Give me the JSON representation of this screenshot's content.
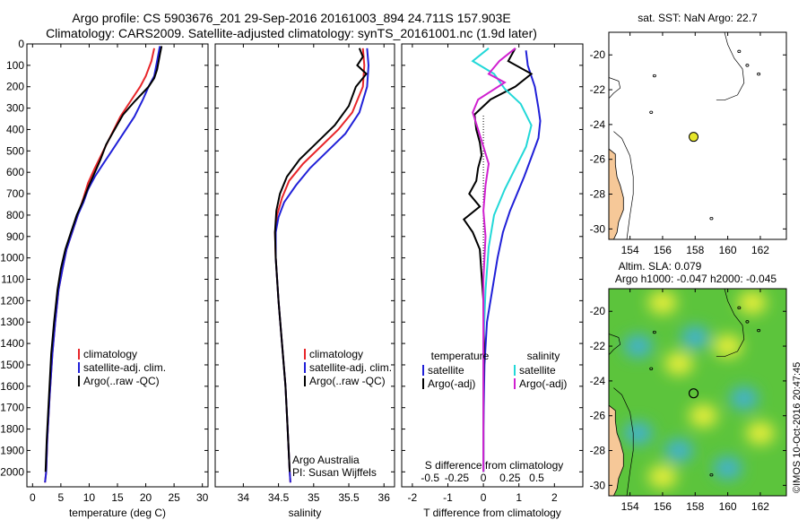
{
  "header": {
    "line1": "Argo profile: CS 5903676_201 29-Sep-2016 20161003_894 24.711S 157.903E",
    "line2": "Climatology: CARS2009. Satellite-adjusted climatology: synTS_20161001.nc (1.9d later)"
  },
  "side_label": "©IMOS 10-Oct-2016 20:47:45",
  "colors": {
    "clim": "#e8262a",
    "sat": "#2020d8",
    "argo": "#000000",
    "sat_s": "#22d8d8",
    "argo_s": "#d020d0",
    "land": "#f6c898"
  },
  "chart_data": [
    {
      "type": "line",
      "xlabel": "temperature (deg C)",
      "xlim": [
        -1,
        31
      ],
      "xticks": [
        0,
        5,
        10,
        15,
        20,
        25,
        30
      ],
      "ylim": [
        2070,
        0
      ],
      "yticks": [
        0,
        100,
        200,
        300,
        400,
        500,
        600,
        700,
        800,
        900,
        1000,
        1100,
        1200,
        1300,
        1400,
        1500,
        1600,
        1700,
        1800,
        1900,
        2000
      ],
      "legend": [
        "climatology",
        "satellite-adj. clim.",
        "Argo(..raw -QC)"
      ],
      "series": [
        {
          "name": "climatology",
          "color": "clim",
          "points": [
            [
              21.5,
              20
            ],
            [
              21,
              80
            ],
            [
              20,
              150
            ],
            [
              19,
              200
            ],
            [
              17.5,
              260
            ],
            [
              15.5,
              340
            ],
            [
              14,
              420
            ],
            [
              12.5,
              500
            ],
            [
              11,
              580
            ],
            [
              9.8,
              650
            ],
            [
              9,
              720
            ],
            [
              8,
              800
            ],
            [
              7,
              880
            ],
            [
              6,
              960
            ],
            [
              5.3,
              1050
            ],
            [
              4.6,
              1150
            ],
            [
              4,
              1300
            ],
            [
              3.5,
              1450
            ],
            [
              3,
              1650
            ],
            [
              2.6,
              1850
            ],
            [
              2.4,
              2000
            ],
            [
              2.2,
              2050
            ]
          ]
        },
        {
          "name": "satellite-adj. clim.",
          "color": "sat",
          "points": [
            [
              22.5,
              10
            ],
            [
              22,
              80
            ],
            [
              21.5,
              150
            ],
            [
              20.5,
              200
            ],
            [
              19.5,
              260
            ],
            [
              18,
              340
            ],
            [
              16,
              420
            ],
            [
              14,
              500
            ],
            [
              12.5,
              560
            ],
            [
              11,
              620
            ],
            [
              9.8,
              680
            ],
            [
              9,
              740
            ],
            [
              8,
              800
            ],
            [
              7,
              880
            ],
            [
              6,
              960
            ],
            [
              5.3,
              1050
            ],
            [
              4.6,
              1150
            ],
            [
              4,
              1300
            ],
            [
              3.5,
              1450
            ],
            [
              3,
              1650
            ],
            [
              2.6,
              1850
            ],
            [
              2.4,
              2000
            ],
            [
              2.2,
              2050
            ]
          ]
        },
        {
          "name": "Argo(..raw -QC)",
          "color": "argo",
          "points": [
            [
              22.8,
              10
            ],
            [
              22.5,
              50
            ],
            [
              22,
              120
            ],
            [
              21.5,
              160
            ],
            [
              20.5,
              200
            ],
            [
              18,
              270
            ],
            [
              16,
              330
            ],
            [
              14.5,
              400
            ],
            [
              13,
              470
            ],
            [
              12,
              540
            ],
            [
              11,
              600
            ],
            [
              10,
              660
            ],
            [
              8.8,
              740
            ],
            [
              7.8,
              800
            ],
            [
              6.8,
              880
            ],
            [
              5.8,
              960
            ],
            [
              5,
              1050
            ],
            [
              4.4,
              1150
            ],
            [
              3.8,
              1300
            ],
            [
              3.3,
              1450
            ],
            [
              2.9,
              1650
            ],
            [
              2.5,
              1850
            ],
            [
              2.3,
              2000
            ]
          ]
        }
      ]
    },
    {
      "type": "line",
      "xlabel": "salinity",
      "xlim": [
        33.6,
        36.15
      ],
      "xticks": [
        34,
        34.5,
        35,
        35.5,
        36
      ],
      "ylim": [
        2070,
        0
      ],
      "legend": [
        "climatology",
        "satellite-adj. clim.",
        "Argo(..raw -QC)"
      ],
      "annotation": [
        "Argo Australia",
        "PI: Susan Wijffels"
      ],
      "series": [
        {
          "name": "climatology",
          "color": "clim",
          "points": [
            [
              35.7,
              20
            ],
            [
              35.72,
              100
            ],
            [
              35.7,
              200
            ],
            [
              35.55,
              320
            ],
            [
              35.35,
              400
            ],
            [
              35.1,
              480
            ],
            [
              34.85,
              560
            ],
            [
              34.65,
              640
            ],
            [
              34.55,
              720
            ],
            [
              34.48,
              800
            ],
            [
              34.45,
              880
            ],
            [
              34.46,
              1000
            ],
            [
              34.5,
              1200
            ],
            [
              34.55,
              1400
            ],
            [
              34.6,
              1600
            ],
            [
              34.63,
              1800
            ],
            [
              34.66,
              2000
            ],
            [
              34.67,
              2050
            ]
          ]
        },
        {
          "name": "satellite-adj. clim.",
          "color": "sat",
          "points": [
            [
              35.76,
              20
            ],
            [
              35.78,
              100
            ],
            [
              35.76,
              200
            ],
            [
              35.65,
              320
            ],
            [
              35.45,
              420
            ],
            [
              35.2,
              500
            ],
            [
              34.95,
              580
            ],
            [
              34.75,
              660
            ],
            [
              34.58,
              740
            ],
            [
              34.5,
              810
            ],
            [
              34.46,
              880
            ],
            [
              34.46,
              1000
            ],
            [
              34.5,
              1200
            ],
            [
              34.55,
              1400
            ],
            [
              34.6,
              1600
            ],
            [
              34.63,
              1800
            ],
            [
              34.66,
              2000
            ],
            [
              34.67,
              2050
            ]
          ]
        },
        {
          "name": "Argo(..raw -QC)",
          "color": "argo",
          "points": [
            [
              35.65,
              20
            ],
            [
              35.7,
              60
            ],
            [
              35.62,
              100
            ],
            [
              35.75,
              140
            ],
            [
              35.6,
              200
            ],
            [
              35.5,
              290
            ],
            [
              35.3,
              380
            ],
            [
              35.05,
              460
            ],
            [
              34.8,
              540
            ],
            [
              34.62,
              620
            ],
            [
              34.52,
              700
            ],
            [
              34.47,
              780
            ],
            [
              34.45,
              880
            ],
            [
              34.46,
              1000
            ],
            [
              34.5,
              1200
            ],
            [
              34.55,
              1400
            ],
            [
              34.6,
              1600
            ],
            [
              34.63,
              1800
            ],
            [
              34.66,
              2000
            ]
          ]
        }
      ]
    },
    {
      "type": "line",
      "xlabel": "T difference from climatology",
      "xlabel2": "S difference from climatology",
      "xlim": [
        -2.3,
        2.8
      ],
      "xticks": [
        -2,
        -1,
        0,
        1,
        2
      ],
      "xticks2": [
        -0.5,
        -0.25,
        0,
        0.25,
        0.5
      ],
      "ylim": [
        2070,
        0
      ],
      "legend_headers": [
        "temperature",
        "salinity"
      ],
      "legend": [
        "satellite",
        "Argo(-adj)",
        "satellite",
        "Argo(-adj)"
      ],
      "series": [
        {
          "name": "satellite",
          "group": "temperature",
          "color": "sat",
          "points": [
            [
              1.2,
              30
            ],
            [
              1.25,
              100
            ],
            [
              1.45,
              200
            ],
            [
              1.55,
              300
            ],
            [
              1.6,
              360
            ],
            [
              1.55,
              440
            ],
            [
              1.35,
              530
            ],
            [
              1.15,
              620
            ],
            [
              0.95,
              700
            ],
            [
              0.75,
              780
            ],
            [
              0.55,
              880
            ],
            [
              0.4,
              1000
            ],
            [
              0.25,
              1150
            ],
            [
              0.1,
              1300
            ],
            [
              0.03,
              1500
            ],
            [
              0,
              1800
            ],
            [
              0,
              2000
            ]
          ]
        },
        {
          "name": "Argo(-adj)",
          "group": "temperature",
          "color": "argo",
          "points": [
            [
              0.9,
              20
            ],
            [
              0.7,
              80
            ],
            [
              1.35,
              140
            ],
            [
              0.9,
              200
            ],
            [
              0.2,
              260
            ],
            [
              -0.25,
              330
            ],
            [
              -0.2,
              400
            ],
            [
              -0.1,
              460
            ],
            [
              -0.05,
              520
            ],
            [
              -0.15,
              580
            ],
            [
              -0.2,
              640
            ],
            [
              -0.4,
              700
            ],
            [
              -0.1,
              760
            ],
            [
              -0.55,
              820
            ],
            [
              -0.3,
              880
            ],
            [
              -0.1,
              960
            ],
            [
              -0.05,
              1080
            ],
            [
              0,
              1200
            ],
            [
              0.02,
              1400
            ],
            [
              0,
              1600
            ],
            [
              0,
              1800
            ],
            [
              0,
              2000
            ]
          ]
        },
        {
          "name": "satellite",
          "group": "salinity",
          "color": "sat_s",
          "points": [
            [
              0.05,
              20
            ],
            [
              -0.1,
              80
            ],
            [
              0.1,
              140
            ],
            [
              0.2,
              210
            ],
            [
              0.35,
              280
            ],
            [
              0.45,
              380
            ],
            [
              0.4,
              480
            ],
            [
              0.3,
              580
            ],
            [
              0.2,
              680
            ],
            [
              0.1,
              800
            ],
            [
              0.05,
              950
            ],
            [
              0.02,
              1150
            ],
            [
              0,
              1400
            ],
            [
              0,
              2000
            ]
          ]
        },
        {
          "name": "Argo(-adj)",
          "group": "salinity",
          "color": "argo_s",
          "points": [
            [
              0.3,
              20
            ],
            [
              0.15,
              80
            ],
            [
              0.05,
              140
            ],
            [
              0.2,
              180
            ],
            [
              -0.05,
              260
            ],
            [
              -0.1,
              320
            ],
            [
              -0.05,
              400
            ],
            [
              0,
              480
            ],
            [
              0.05,
              560
            ],
            [
              0.02,
              660
            ],
            [
              0,
              780
            ],
            [
              0.02,
              900
            ],
            [
              0,
              1100
            ],
            [
              0,
              1400
            ],
            [
              0,
              2000
            ]
          ]
        }
      ]
    },
    {
      "type": "scatter",
      "title": "sat. SST: NaN Argo: 22.7",
      "xlim": [
        152.7,
        163.6
      ],
      "ylim": [
        -30.6,
        -18.7
      ],
      "xticks": [
        154,
        156,
        158,
        160,
        162
      ],
      "yticks": [
        -20,
        -22,
        -24,
        -26,
        -28,
        -30
      ],
      "point": {
        "lon": 157.903,
        "lat": -24.711
      }
    },
    {
      "type": "heatmap",
      "title_line1": "Altim. SLA: 0.079",
      "title_line2": "Argo h1000: -0.047 h2000: -0.045",
      "xlim": [
        152.7,
        163.6
      ],
      "ylim": [
        -30.6,
        -18.7
      ],
      "xticks": [
        154,
        156,
        158,
        160,
        162
      ],
      "yticks": [
        -20,
        -22,
        -24,
        -26,
        -28,
        -30
      ],
      "point": {
        "lon": 157.903,
        "lat": -24.711
      },
      "blobs": [
        {
          "lon": 158.5,
          "lat": -26,
          "type": "yellow"
        },
        {
          "lon": 162,
          "lat": -27,
          "type": "yellow"
        },
        {
          "lon": 156,
          "lat": -19.5,
          "type": "yellow"
        },
        {
          "lon": 160,
          "lat": -22,
          "type": "yellow"
        },
        {
          "lon": 161.5,
          "lat": -19.5,
          "type": "yellow"
        },
        {
          "lon": 157,
          "lat": -23,
          "type": "yellow"
        },
        {
          "lon": 156,
          "lat": -29.5,
          "type": "yellow"
        },
        {
          "lon": 157,
          "lat": -28,
          "type": "blue"
        },
        {
          "lon": 158,
          "lat": -21.5,
          "type": "blue"
        },
        {
          "lon": 154.5,
          "lat": -22,
          "type": "blue"
        },
        {
          "lon": 161,
          "lat": -25,
          "type": "blue"
        },
        {
          "lon": 160,
          "lat": -29,
          "type": "blue"
        },
        {
          "lon": 154.5,
          "lat": -27,
          "type": "blue"
        }
      ]
    }
  ]
}
